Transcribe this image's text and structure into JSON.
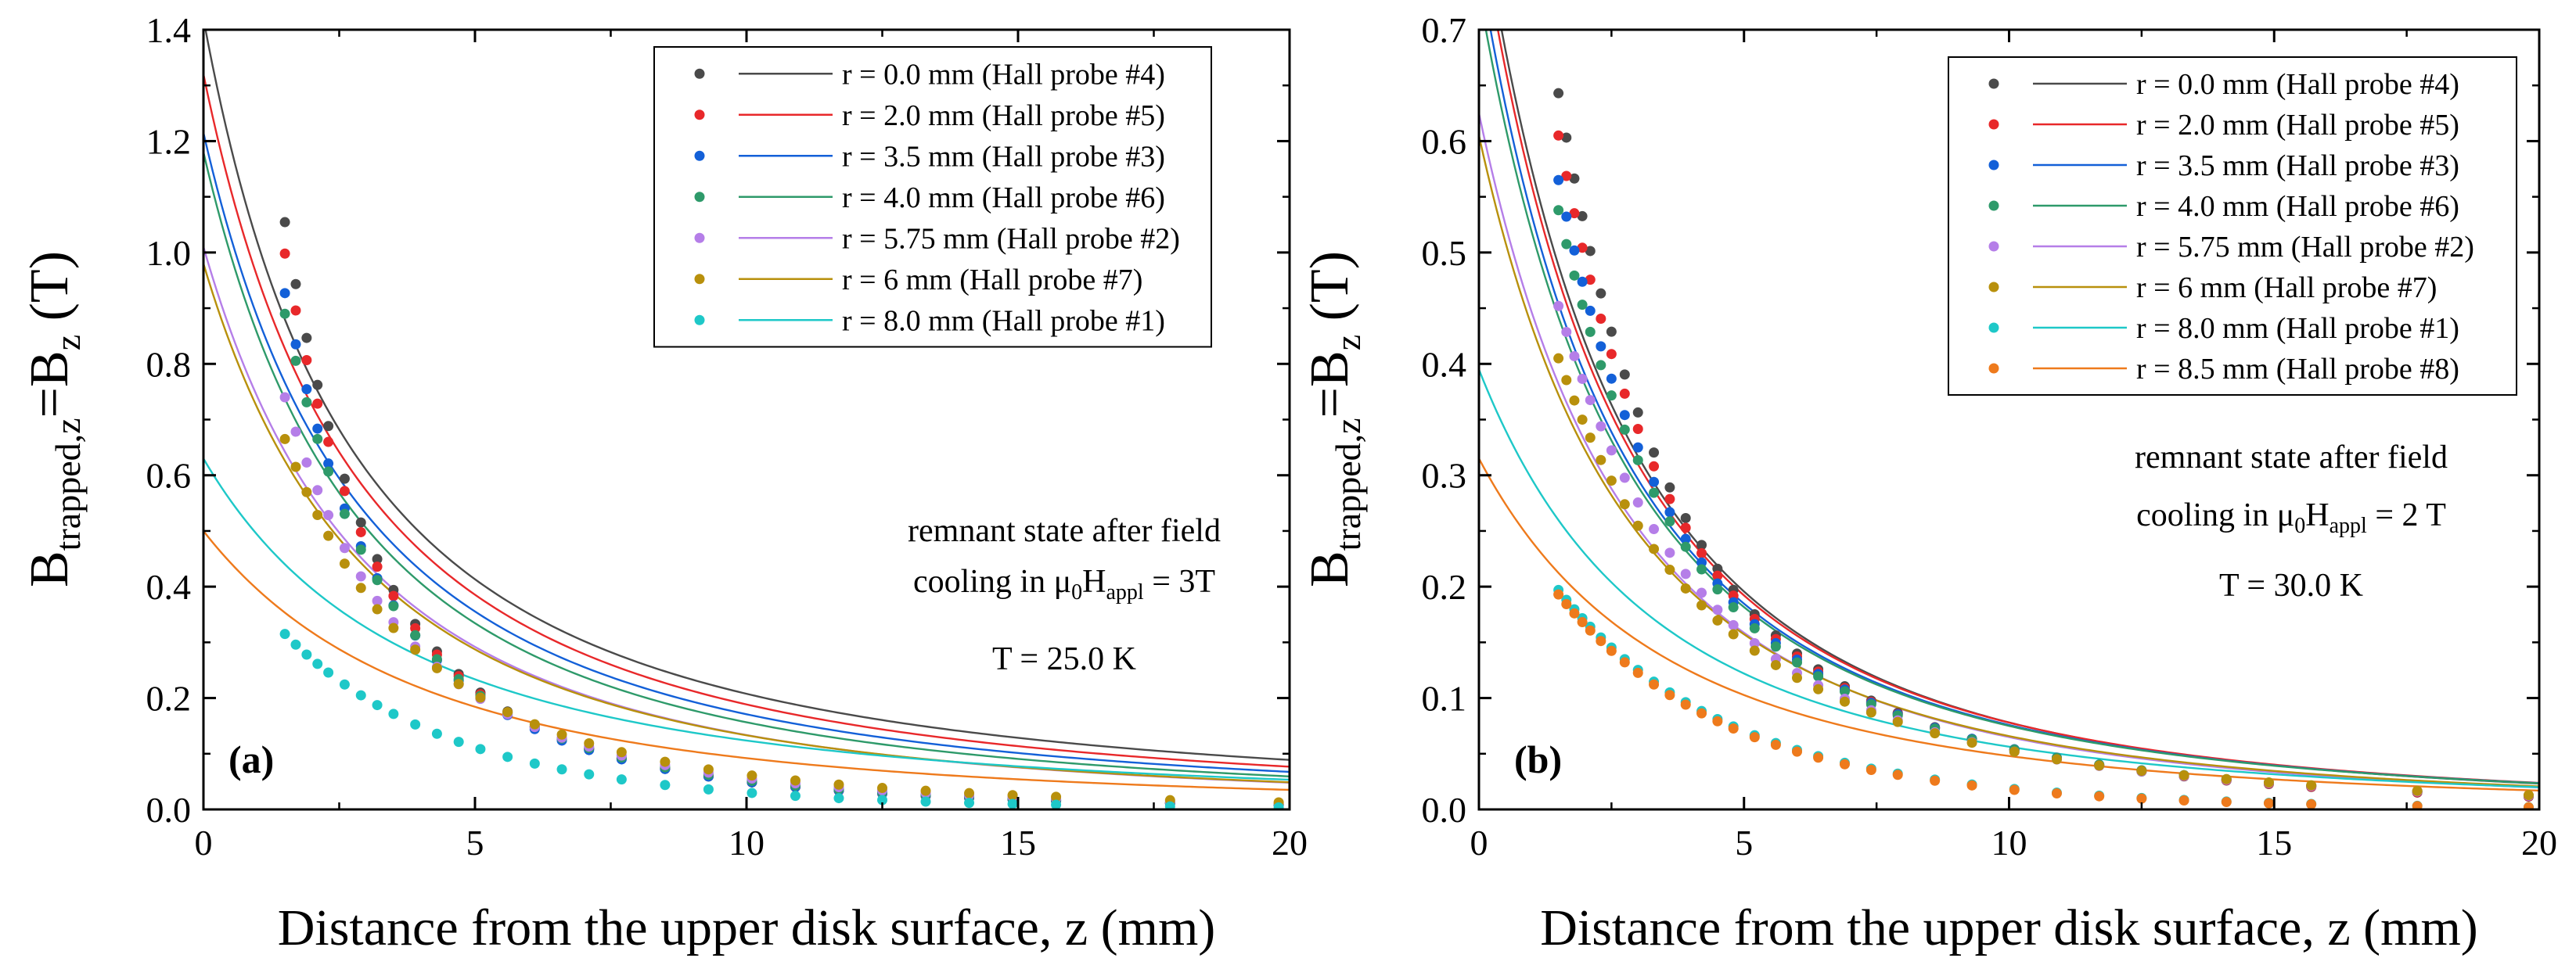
{
  "chart_data": [
    {
      "type": "scatter",
      "panel_label": "(a)",
      "xlabel": "Distance from the upper disk surface, z (mm)",
      "ylabel_main": "B",
      "ylabel_sub1": "trapped,z",
      "ylabel_eq": "=B",
      "ylabel_sub2": "z",
      "ylabel_unit": " (T)",
      "xlim": [
        0,
        20
      ],
      "ylim": [
        0,
        1.4
      ],
      "xticks": [
        0,
        5,
        10,
        15,
        20
      ],
      "yticks": [
        0.0,
        0.2,
        0.4,
        0.6,
        0.8,
        1.0,
        1.2,
        1.4
      ],
      "annotation_lines": [
        {
          "text": "remnant state after field"
        },
        {
          "pre": "cooling in ",
          "mu": "μ",
          "sub0": "0",
          "H": "H",
          "sub": "appl",
          "post": " = 3T"
        },
        {
          "text": "T = 25.0 K"
        }
      ],
      "series": [
        {
          "label": "r = 0.0 mm (Hall probe #4)",
          "color": "#4a4a4a",
          "fit_b0": 1.42,
          "fit_z0": 4.3,
          "fit_n": 1.6,
          "pts_b0": 1.0545,
          "pts_z0": 6.36,
          "pts_n": 3.6
        },
        {
          "label": "r = 2.0 mm (Hall probe #5)",
          "color": "#e8282a",
          "fit_b0": 1.32,
          "fit_z0": 4.9,
          "fit_n": 1.75,
          "pts_b0": 0.998,
          "pts_z0": 6.57,
          "pts_n": 3.6
        },
        {
          "label": "r = 3.5 mm (Hall probe #3)",
          "color": "#1360d8",
          "fit_b0": 1.215,
          "fit_z0": 5.3,
          "fit_n": 1.85,
          "pts_b0": 0.927,
          "pts_z0": 6.8,
          "pts_n": 3.6
        },
        {
          "label": "r = 4.0 mm (Hall probe #6)",
          "color": "#2e9a6a",
          "fit_b0": 1.18,
          "fit_z0": 5.5,
          "fit_n": 1.95,
          "pts_b0": 0.89,
          "pts_z0": 7.12,
          "pts_n": 3.6
        },
        {
          "label": "r = 5.75 mm (Hall probe #2)",
          "color": "#b57ee8",
          "fit_b0": 1.01,
          "fit_z0": 6.4,
          "fit_n": 2.15,
          "pts_b0": 0.74,
          "pts_z0": 8.16,
          "pts_n": 3.6
        },
        {
          "label": "r = 6 mm (Hall probe #7)",
          "color": "#b8900c",
          "fit_b0": 0.98,
          "fit_z0": 6.3,
          "fit_n": 2.1,
          "pts_b0": 0.665,
          "pts_z0": 9.12,
          "pts_n": 3.6
        },
        {
          "label": "r = 8.0 mm (Hall probe #1)",
          "color": "#1ec8c8",
          "fit_b0": 0.63,
          "fit_z0": 6.8,
          "fit_n": 1.8,
          "pts_b0": 0.315,
          "pts_z0": 28.6,
          "pts_n": 9.0
        },
        {
          "label": "",
          "color": "#ee7a1c",
          "fit_b0": 0.5,
          "fit_z0": 9.2,
          "fit_n": 2.3,
          "pts_b0": null,
          "pts_z0": null,
          "pts_n": null
        }
      ],
      "z_points": [
        1.5,
        1.7,
        1.9,
        2.1,
        2.3,
        2.6,
        2.9,
        3.2,
        3.5,
        3.9,
        4.3,
        4.7,
        5.1,
        5.6,
        6.1,
        6.6,
        7.1,
        7.7,
        8.5,
        9.3,
        10.1,
        10.9,
        11.7,
        12.5,
        13.3,
        14.1,
        14.9,
        15.7,
        17.8,
        19.8
      ]
    },
    {
      "type": "scatter",
      "panel_label": "(b)",
      "xlabel": "Distance from the upper disk surface, z (mm)",
      "ylabel_main": "B",
      "ylabel_sub1": "trapped,z",
      "ylabel_eq": "=B",
      "ylabel_sub2": "z",
      "ylabel_unit": " (T)",
      "xlim": [
        0,
        20
      ],
      "ylim": [
        0,
        0.7
      ],
      "xticks": [
        0,
        5,
        10,
        15,
        20
      ],
      "yticks": [
        0.0,
        0.1,
        0.2,
        0.3,
        0.4,
        0.5,
        0.6,
        0.7
      ],
      "annotation_lines": [
        {
          "text": "remnant state after field"
        },
        {
          "pre": "cooling in ",
          "mu": "μ",
          "sub0": "0",
          "H": "H",
          "sub": "appl",
          "post": " = 2 T"
        },
        {
          "text": "T = 30.0 K"
        }
      ],
      "series": [
        {
          "label": "r = 0.0 mm (Hall probe #4)",
          "color": "#4a4a4a",
          "fit_b0": 0.82,
          "fit_z0": 6.8,
          "fit_n": 2.6,
          "pts_b0": 0.643,
          "pts_z0": 7.66,
          "pts_n": 3.3
        },
        {
          "label": "r = 2.0 mm (Hall probe #5)",
          "color": "#e8282a",
          "fit_b0": 0.8,
          "fit_z0": 6.5,
          "fit_n": 2.5,
          "pts_b0": 0.605,
          "pts_z0": 7.93,
          "pts_n": 3.3
        },
        {
          "label": "r = 3.5 mm (Hall probe #3)",
          "color": "#1360d8",
          "fit_b0": 0.76,
          "fit_z0": 6.4,
          "fit_n": 2.45,
          "pts_b0": 0.565,
          "pts_z0": 7.95,
          "pts_n": 3.2
        },
        {
          "label": "r = 4.0 mm (Hall probe #6)",
          "color": "#2e9a6a",
          "fit_b0": 0.735,
          "fit_z0": 6.5,
          "fit_n": 2.45,
          "pts_b0": 0.538,
          "pts_z0": 8.16,
          "pts_n": 3.2
        },
        {
          "label": "r = 5.75 mm (Hall probe #2)",
          "color": "#b57ee8",
          "fit_b0": 0.625,
          "fit_z0": 7.2,
          "fit_n": 2.6,
          "pts_b0": 0.452,
          "pts_z0": 9.27,
          "pts_n": 3.3
        },
        {
          "label": "r = 6 mm (Hall probe #7)",
          "color": "#b8900c",
          "fit_b0": 0.605,
          "fit_z0": 7.0,
          "fit_n": 2.5,
          "pts_b0": 0.405,
          "pts_z0": 9.94,
          "pts_n": 3.3
        },
        {
          "label": "r = 8.0 mm (Hall probe #1)",
          "color": "#1ec8c8",
          "fit_b0": 0.395,
          "fit_z0": 7.5,
          "fit_n": 2.3,
          "pts_b0": 0.197,
          "pts_z0": 35.7,
          "pts_n": 11.0
        },
        {
          "label": "r = 8.5 mm (Hall probe #8)",
          "color": "#ee7a1c",
          "fit_b0": 0.315,
          "fit_z0": 8.4,
          "fit_n": 2.4,
          "pts_b0": 0.193,
          "pts_z0": 38.9,
          "pts_n": 12.0
        }
      ],
      "z_points": [
        1.5,
        1.65,
        1.8,
        1.95,
        2.1,
        2.3,
        2.5,
        2.75,
        3.0,
        3.3,
        3.6,
        3.9,
        4.2,
        4.5,
        4.8,
        5.2,
        5.6,
        6.0,
        6.4,
        6.9,
        7.4,
        7.9,
        8.6,
        9.3,
        10.1,
        10.9,
        11.7,
        12.5,
        13.3,
        14.1,
        14.9,
        15.7,
        17.7,
        19.8
      ]
    }
  ]
}
